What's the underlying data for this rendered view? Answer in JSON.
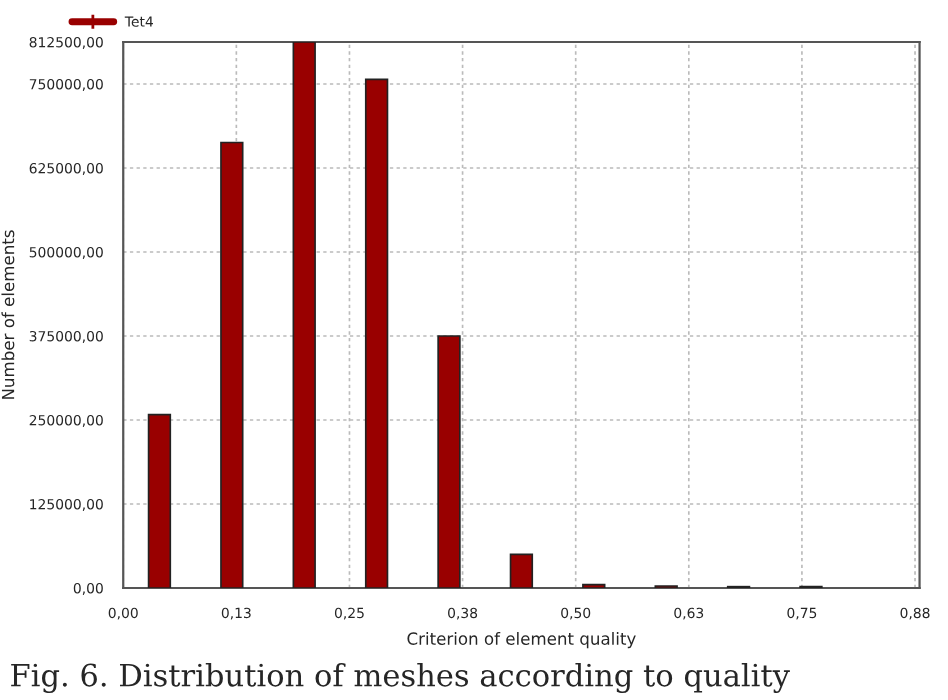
{
  "chart_data": {
    "type": "bar",
    "xlabel": "Criterion of element quality",
    "ylabel": "Number of elements",
    "x": [
      0.04,
      0.12,
      0.2,
      0.28,
      0.36,
      0.44,
      0.52,
      0.6,
      0.68,
      0.76
    ],
    "series": [
      {
        "name": "Tet4",
        "color": "#990000",
        "values": [
          258000,
          663000,
          812500,
          757000,
          375000,
          50000,
          5000,
          3000,
          2000,
          2000
        ]
      }
    ],
    "xlim": [
      0,
      0.88
    ],
    "xticks": [
      {
        "value": 0,
        "label": "0,00"
      },
      {
        "value": 0.125,
        "label": "0,13"
      },
      {
        "value": 0.25,
        "label": "0,25"
      },
      {
        "value": 0.375,
        "label": "0,38"
      },
      {
        "value": 0.5,
        "label": "0,50"
      },
      {
        "value": 0.625,
        "label": "0,63"
      },
      {
        "value": 0.75,
        "label": "0,75"
      },
      {
        "value": 0.875,
        "label": "0,88"
      }
    ],
    "ylim": [
      0,
      812500
    ],
    "yticks": [
      {
        "value": 0,
        "label": "0,00"
      },
      {
        "value": 125000,
        "label": "125000,00"
      },
      {
        "value": 250000,
        "label": "250000,00"
      },
      {
        "value": 375000,
        "label": "375000,00"
      },
      {
        "value": 500000,
        "label": "500000,00"
      },
      {
        "value": 625000,
        "label": "625000,00"
      },
      {
        "value": 750000,
        "label": "750000,00"
      },
      {
        "value": 812500,
        "label": "812500,00"
      }
    ],
    "grid": true,
    "legend": "top left",
    "annotations": [
      "Fig. 6. Distribution of meshes according to quality"
    ]
  }
}
